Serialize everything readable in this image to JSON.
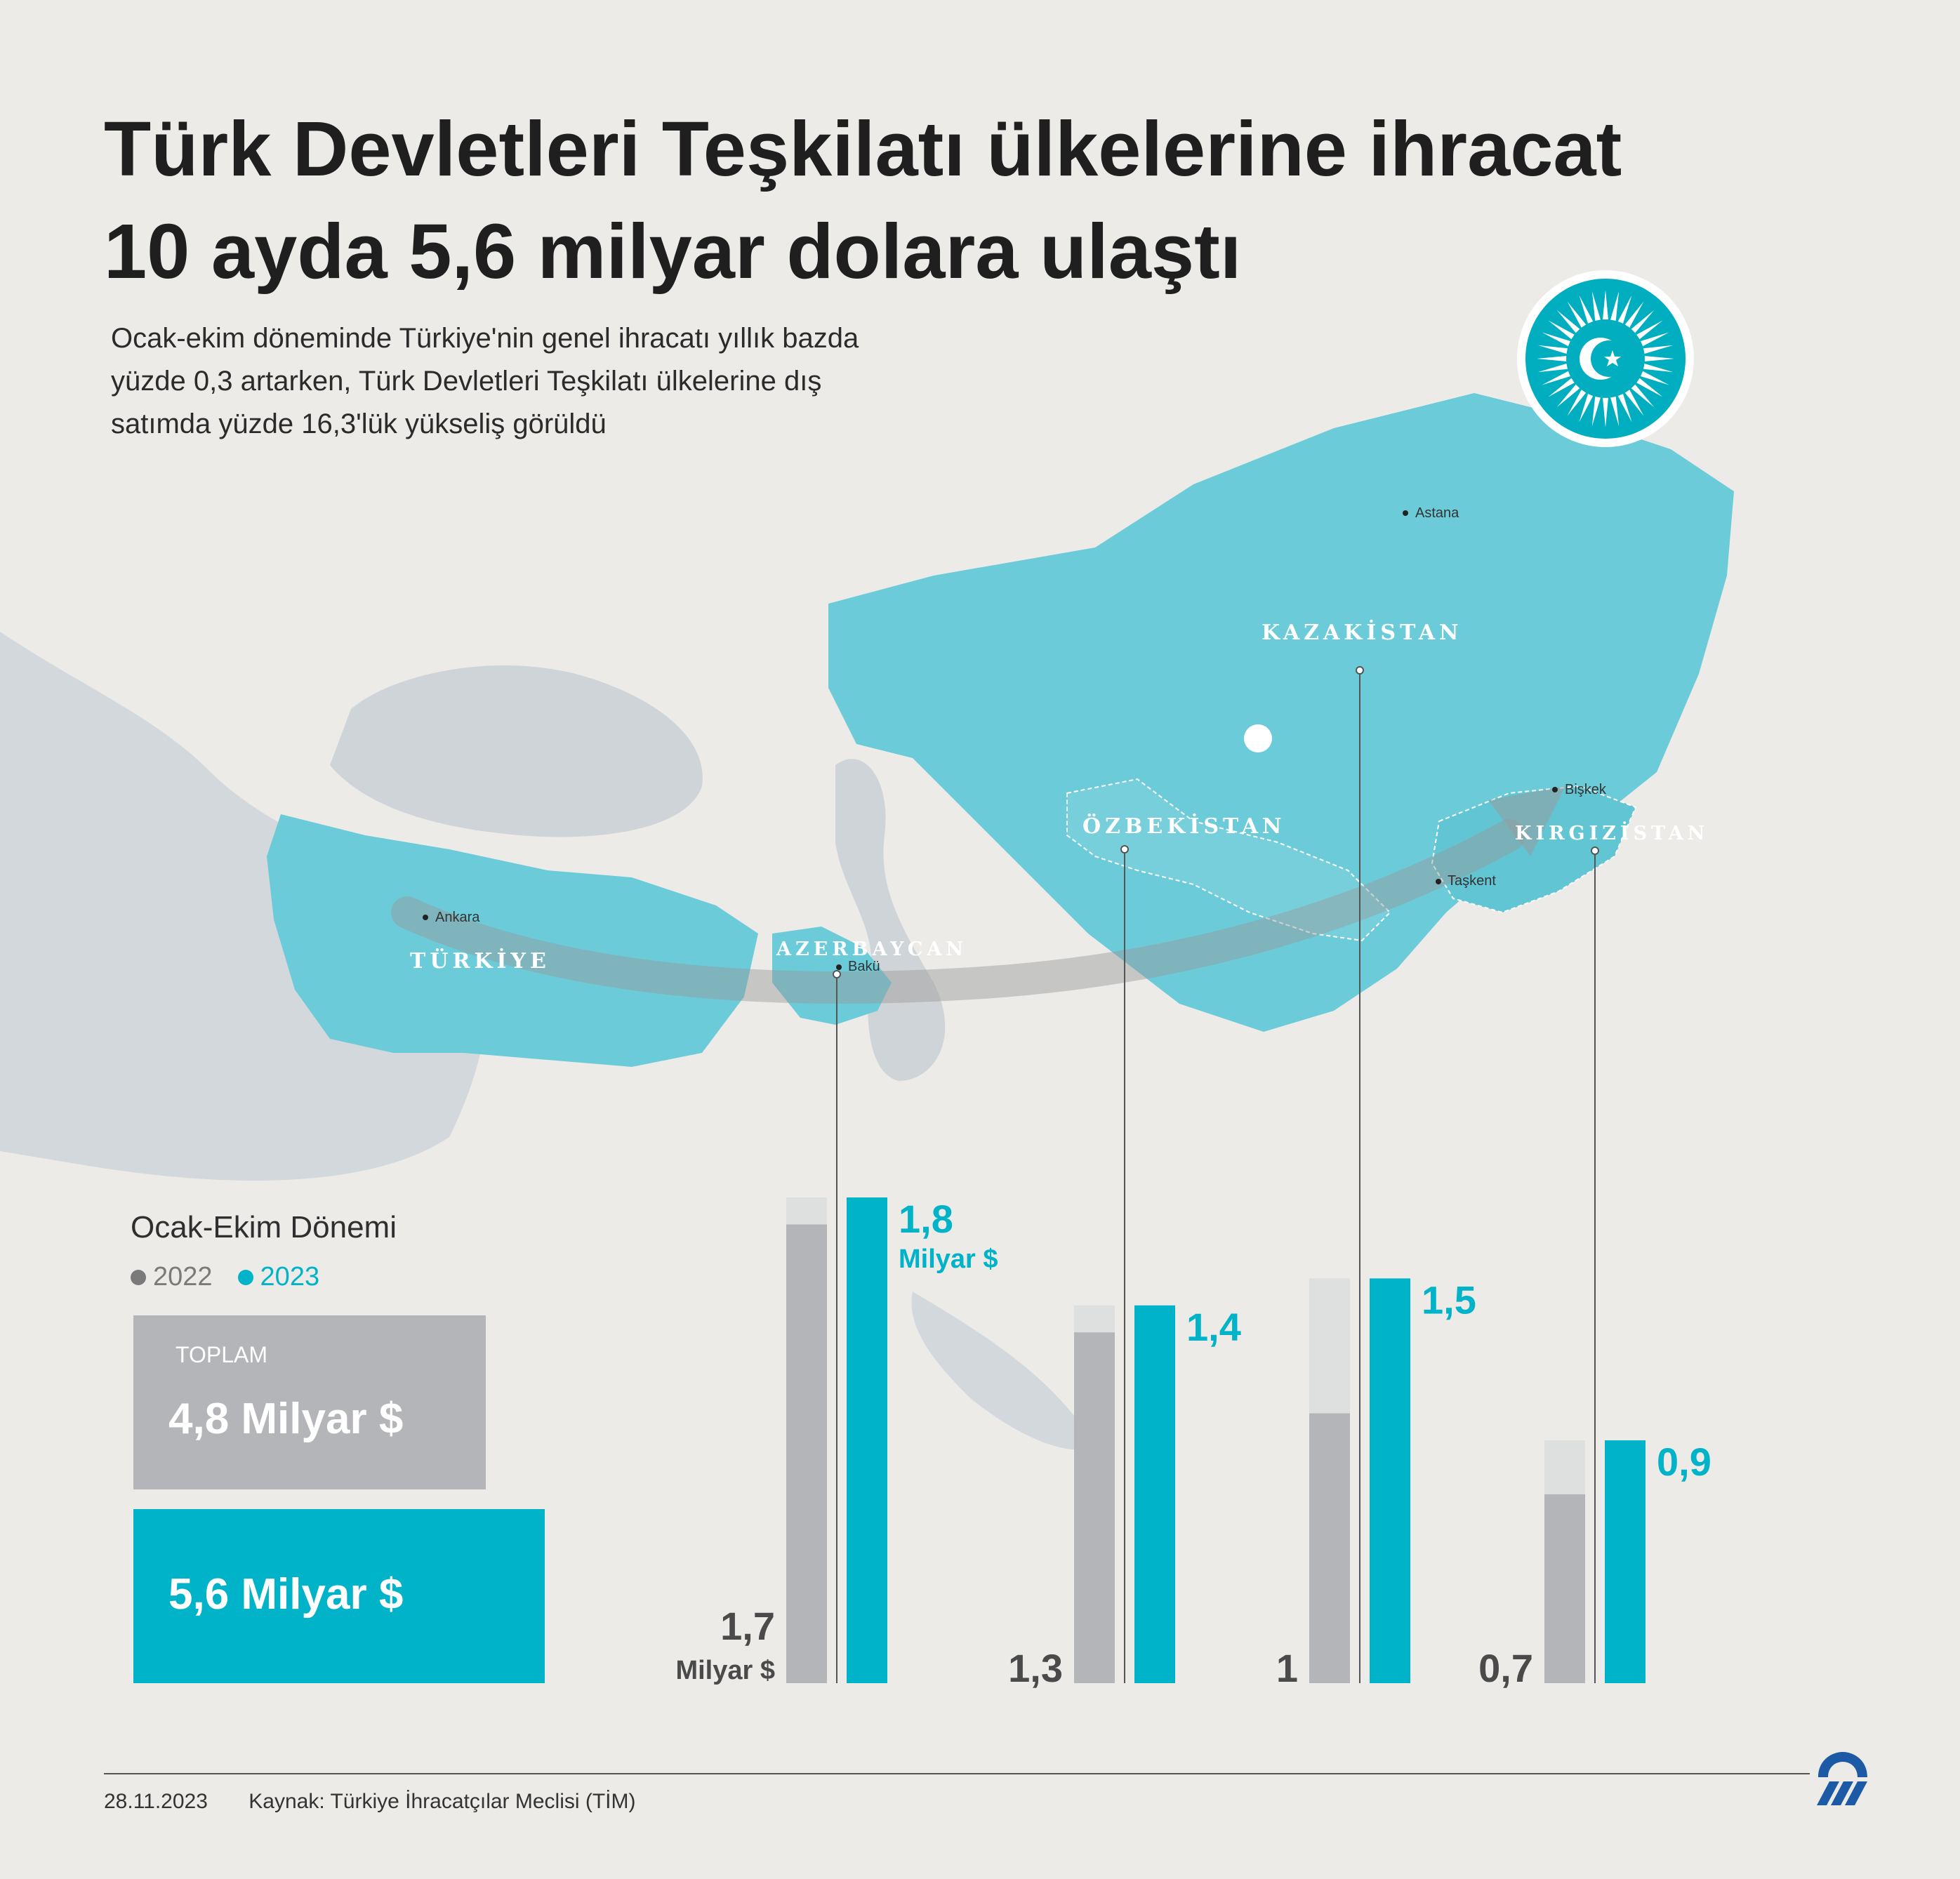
{
  "title_lines": [
    "Türk Devletleri Teşkilatı ülkelerine ihracat",
    "10 ayda 5,6 milyar dolara ulaştı"
  ],
  "subtitle_lines": [
    "Ocak-ekim döneminde Türkiye'nin genel ihracatı yıllık bazda",
    "yüzde 0,3 artarken, Türk Devletleri Teşkilatı ülkelerine dış",
    "satımda yüzde 16,3'lük yükseliş görüldü"
  ],
  "map": {
    "countries": {
      "turkiye": "TÜRKİYE",
      "azerbaycan": "AZERBAYCAN",
      "ozbekistan": "ÖZBEKİSTAN",
      "kazakistan": "KAZAKİSTAN",
      "kirgizistan": "KIRGIZİSTAN"
    },
    "cities": {
      "ankara": "Ankara",
      "baku": "Bakü",
      "taskent": "Taşkent",
      "biskek": "Bişkek",
      "astana": "Astana"
    }
  },
  "period_label": "Ocak-Ekim Dönemi",
  "legend": [
    {
      "label": "2022",
      "color": "#7a7a7a"
    },
    {
      "label": "2023",
      "color": "#00b3c9"
    }
  ],
  "totals": {
    "label": "TOPLAM",
    "value_2022": "4,8 Milyar $",
    "value_2023": "5,6 Milyar $"
  },
  "colors": {
    "bar_2022": "#b4b5b9",
    "bar_2023": "#00b3c9",
    "label_2022": "#4a4a4a",
    "label_2023": "#00b3c9",
    "map_highlight": "#6ccbd9",
    "water": "#cfd4d8"
  },
  "chart_data": {
    "type": "bar",
    "categories": [
      "Azerbaycan",
      "Özbekistan",
      "Kazakistan",
      "Kırgızistan"
    ],
    "series": [
      {
        "name": "2022",
        "values": [
          1.7,
          1.3,
          1.0,
          0.7
        ],
        "labels": [
          "1,7",
          "1,3",
          "1",
          "0,7"
        ]
      },
      {
        "name": "2023",
        "values": [
          1.8,
          1.4,
          1.5,
          0.9
        ],
        "labels": [
          "1,8",
          "1,4",
          "1,5",
          "0,9"
        ]
      }
    ],
    "unit_label": "Milyar $",
    "ylim": [
      0,
      1.8
    ]
  },
  "footer": {
    "date": "28.11.2023",
    "source": "Kaynak: Türkiye İhracatçılar Meclisi (TİM)"
  },
  "logo_icon": "aa-logo-icon",
  "emblem_icon": "turkic-states-emblem-icon"
}
